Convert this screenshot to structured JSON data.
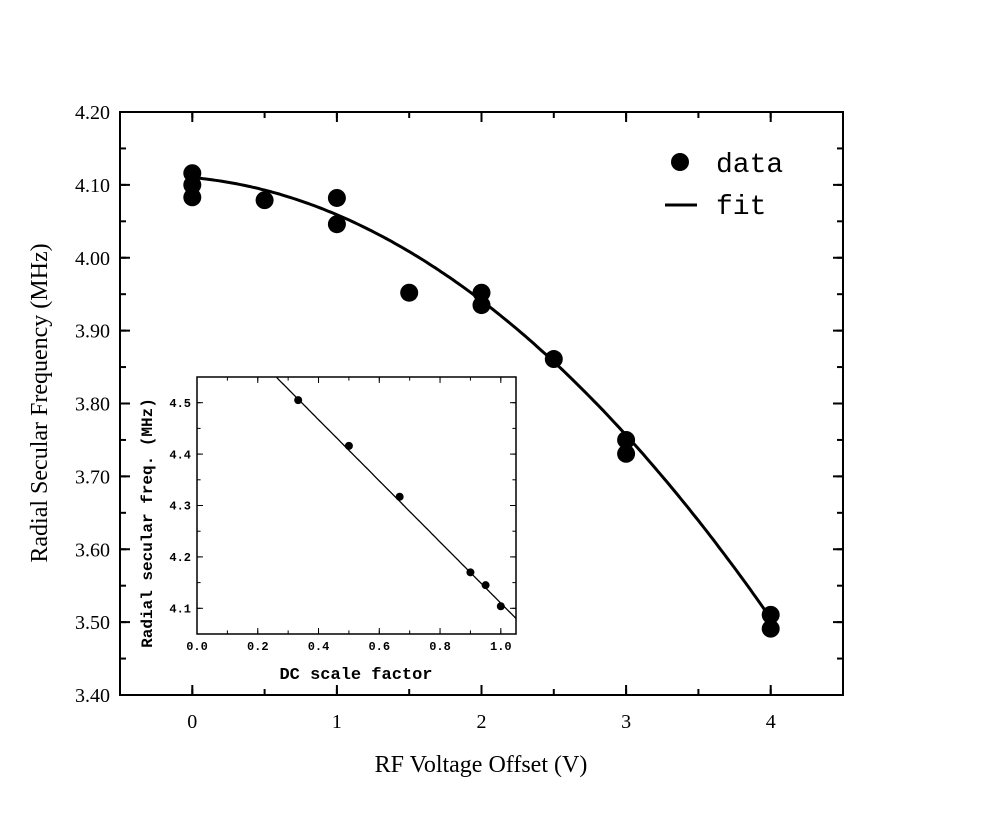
{
  "chart_data": [
    {
      "type": "scatter",
      "xlabel": "RF Voltage Offset (V)",
      "ylabel": "Radial Secular Frequency (MHz)",
      "xlim": [
        -0.5,
        4.5
      ],
      "ylim": [
        3.4,
        4.2
      ],
      "xticks": [
        "0",
        "1",
        "2",
        "3",
        "4"
      ],
      "yticks": [
        "3.40",
        "3.50",
        "3.60",
        "3.70",
        "3.80",
        "3.90",
        "4.00",
        "4.10",
        "4.20"
      ],
      "legend_position": "top-right",
      "grid": false,
      "series": [
        {
          "name": "data",
          "kind": "points",
          "x": [
            0,
            0,
            0,
            0.5,
            1,
            1,
            1.5,
            2,
            2,
            2.5,
            3,
            3,
            4,
            4
          ],
          "y": [
            4.116,
            4.1,
            4.083,
            4.079,
            4.082,
            4.046,
            3.952,
            3.952,
            3.935,
            3.861,
            3.75,
            3.731,
            3.51,
            3.491
          ]
        },
        {
          "name": "fit",
          "kind": "line",
          "model": "quadratic",
          "coefficients": [
            4.11,
            -0.0176,
            -0.0334
          ],
          "x_range": [
            0,
            4
          ]
        }
      ]
    },
    {
      "type": "scatter",
      "position": "inset",
      "xlabel": "DC scale factor",
      "ylabel": "Radial secular freq. (MHz)",
      "xlim": [
        0,
        1.05
      ],
      "ylim": [
        4.05,
        4.55
      ],
      "xticks": [
        "0.0",
        "0.2",
        "0.4",
        "0.6",
        "0.8",
        "1.0"
      ],
      "yticks": [
        "4.1",
        "4.2",
        "4.3",
        "4.4",
        "4.5"
      ],
      "series": [
        {
          "kind": "points",
          "x": [
            0.333,
            0.5,
            0.667,
            0.9,
            0.95,
            1.0
          ],
          "y": [
            4.505,
            4.416,
            4.317,
            4.17,
            4.145,
            4.104
          ]
        },
        {
          "kind": "line",
          "model": "linear",
          "coefficients": [
            4.705,
            -0.595
          ]
        }
      ]
    }
  ]
}
